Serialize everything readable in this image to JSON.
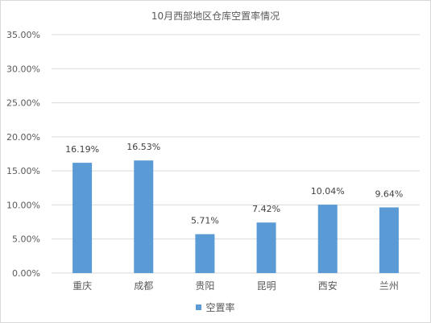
{
  "chart_data": {
    "type": "bar",
    "title": "10月西部地区仓库空置率情况",
    "categories": [
      "重庆",
      "成都",
      "贵阳",
      "昆明",
      "西安",
      "兰州"
    ],
    "series": [
      {
        "name": "空置率",
        "values": [
          16.19,
          16.53,
          5.71,
          7.42,
          10.04,
          9.64
        ],
        "labels": [
          "16.19%",
          "16.53%",
          "5.71%",
          "7.42%",
          "10.04%",
          "9.64%"
        ]
      }
    ],
    "yticks": [
      "0.00%",
      "5.00%",
      "10.00%",
      "15.00%",
      "20.00%",
      "25.00%",
      "30.00%",
      "35.00%"
    ],
    "ylim": [
      0,
      35
    ],
    "grid": true,
    "legend": "bottom"
  },
  "colors": {
    "bar": "#5b9bd5",
    "grid": "#d9d9d9",
    "text": "#595959",
    "label": "#404040"
  }
}
